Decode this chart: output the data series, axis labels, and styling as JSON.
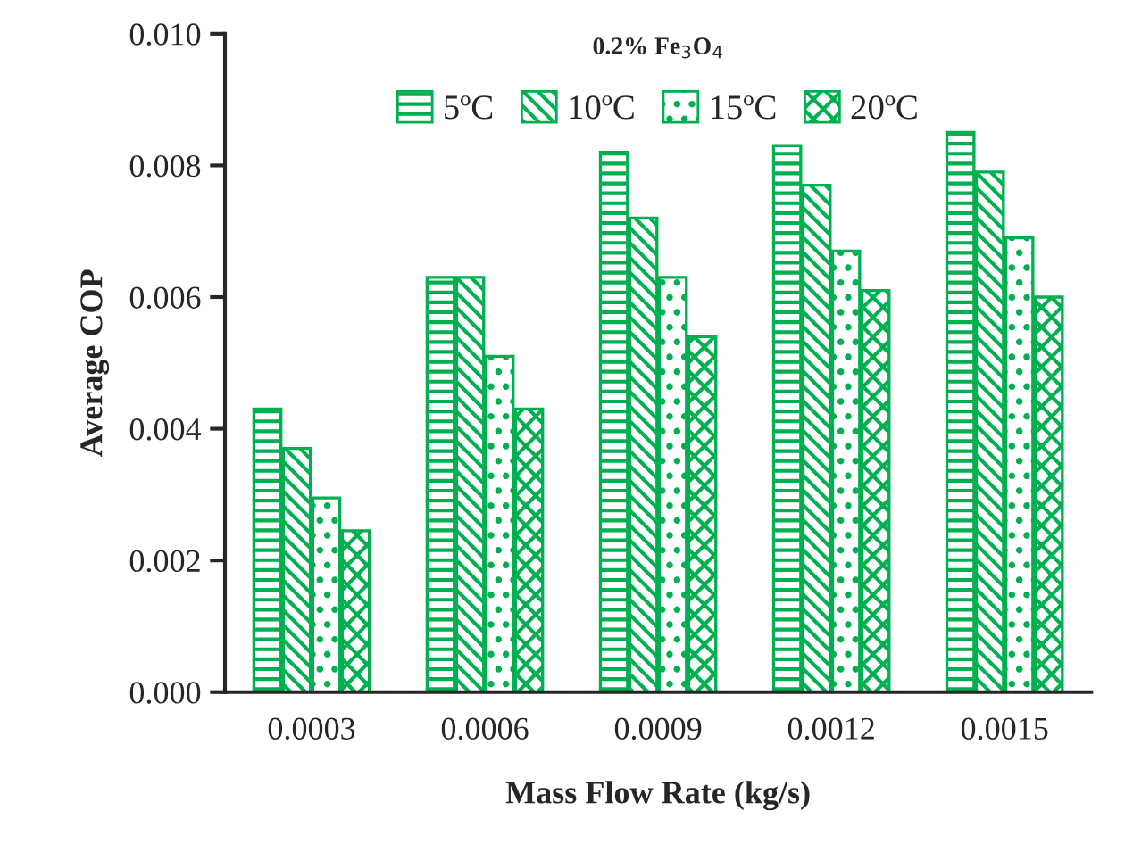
{
  "chart_data": {
    "type": "bar",
    "title": "0.2% Fe$_{3}$O$_{4}$",
    "xlabel": "Mass Flow Rate (kg/s)",
    "ylabel": "Average COP",
    "categories": [
      "0.0003",
      "0.0006",
      "0.0009",
      "0.0012",
      "0.0015"
    ],
    "series": [
      {
        "name": "5ºC",
        "color": "#00b050",
        "values": [
          0.0043,
          0.0063,
          0.0082,
          0.0083,
          0.0085
        ]
      },
      {
        "name": "10ºC",
        "color": "#00b050",
        "values": [
          0.0037,
          0.0063,
          0.0072,
          0.0077,
          0.0079
        ]
      },
      {
        "name": "15ºC",
        "color": "#00b050",
        "values": [
          0.00295,
          0.0051,
          0.0063,
          0.0067,
          0.0069
        ]
      },
      {
        "name": "20ºC",
        "color": "#00b050",
        "values": [
          0.00245,
          0.0043,
          0.0054,
          0.0061,
          0.006
        ]
      }
    ],
    "ylim": [
      0,
      0.01
    ],
    "yticks": [
      {
        "value": 0,
        "label": "0.000"
      },
      {
        "value": 0.002,
        "label": "0.002"
      },
      {
        "value": 0.004,
        "label": "0.004"
      },
      {
        "value": 0.006,
        "label": "0.006"
      },
      {
        "value": 0.008,
        "label": "0.008"
      },
      {
        "value": 0.01,
        "label": "0.010"
      }
    ],
    "legend": "top",
    "grid": false
  }
}
